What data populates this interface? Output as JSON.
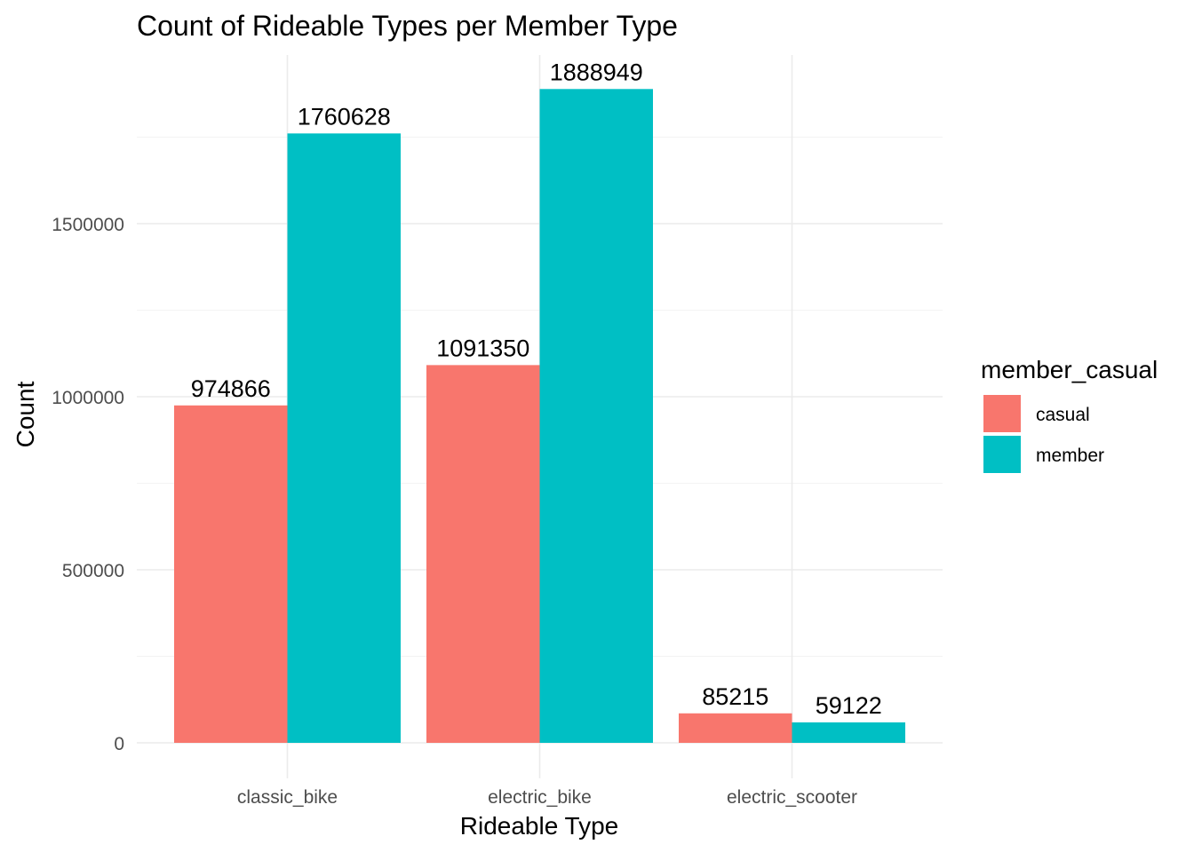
{
  "chart_data": {
    "type": "bar",
    "title": "Count of Rideable Types per Member Type",
    "xlabel": "Rideable Type",
    "ylabel": "Count",
    "categories": [
      "classic_bike",
      "electric_bike",
      "electric_scooter"
    ],
    "series": [
      {
        "name": "casual",
        "color": "#F8766D",
        "values": [
          974866,
          1091350,
          85215
        ]
      },
      {
        "name": "member",
        "color": "#00BFC4",
        "values": [
          1760628,
          1888949,
          59122
        ]
      }
    ],
    "y_ticks": [
      0,
      500000,
      1000000,
      1500000
    ],
    "y_tick_labels": [
      "0",
      "500000",
      "1000000",
      "1500000"
    ],
    "ylim": [
      0,
      1985000
    ],
    "grid": true,
    "legend": {
      "title": "member_casual",
      "position": "right"
    }
  }
}
